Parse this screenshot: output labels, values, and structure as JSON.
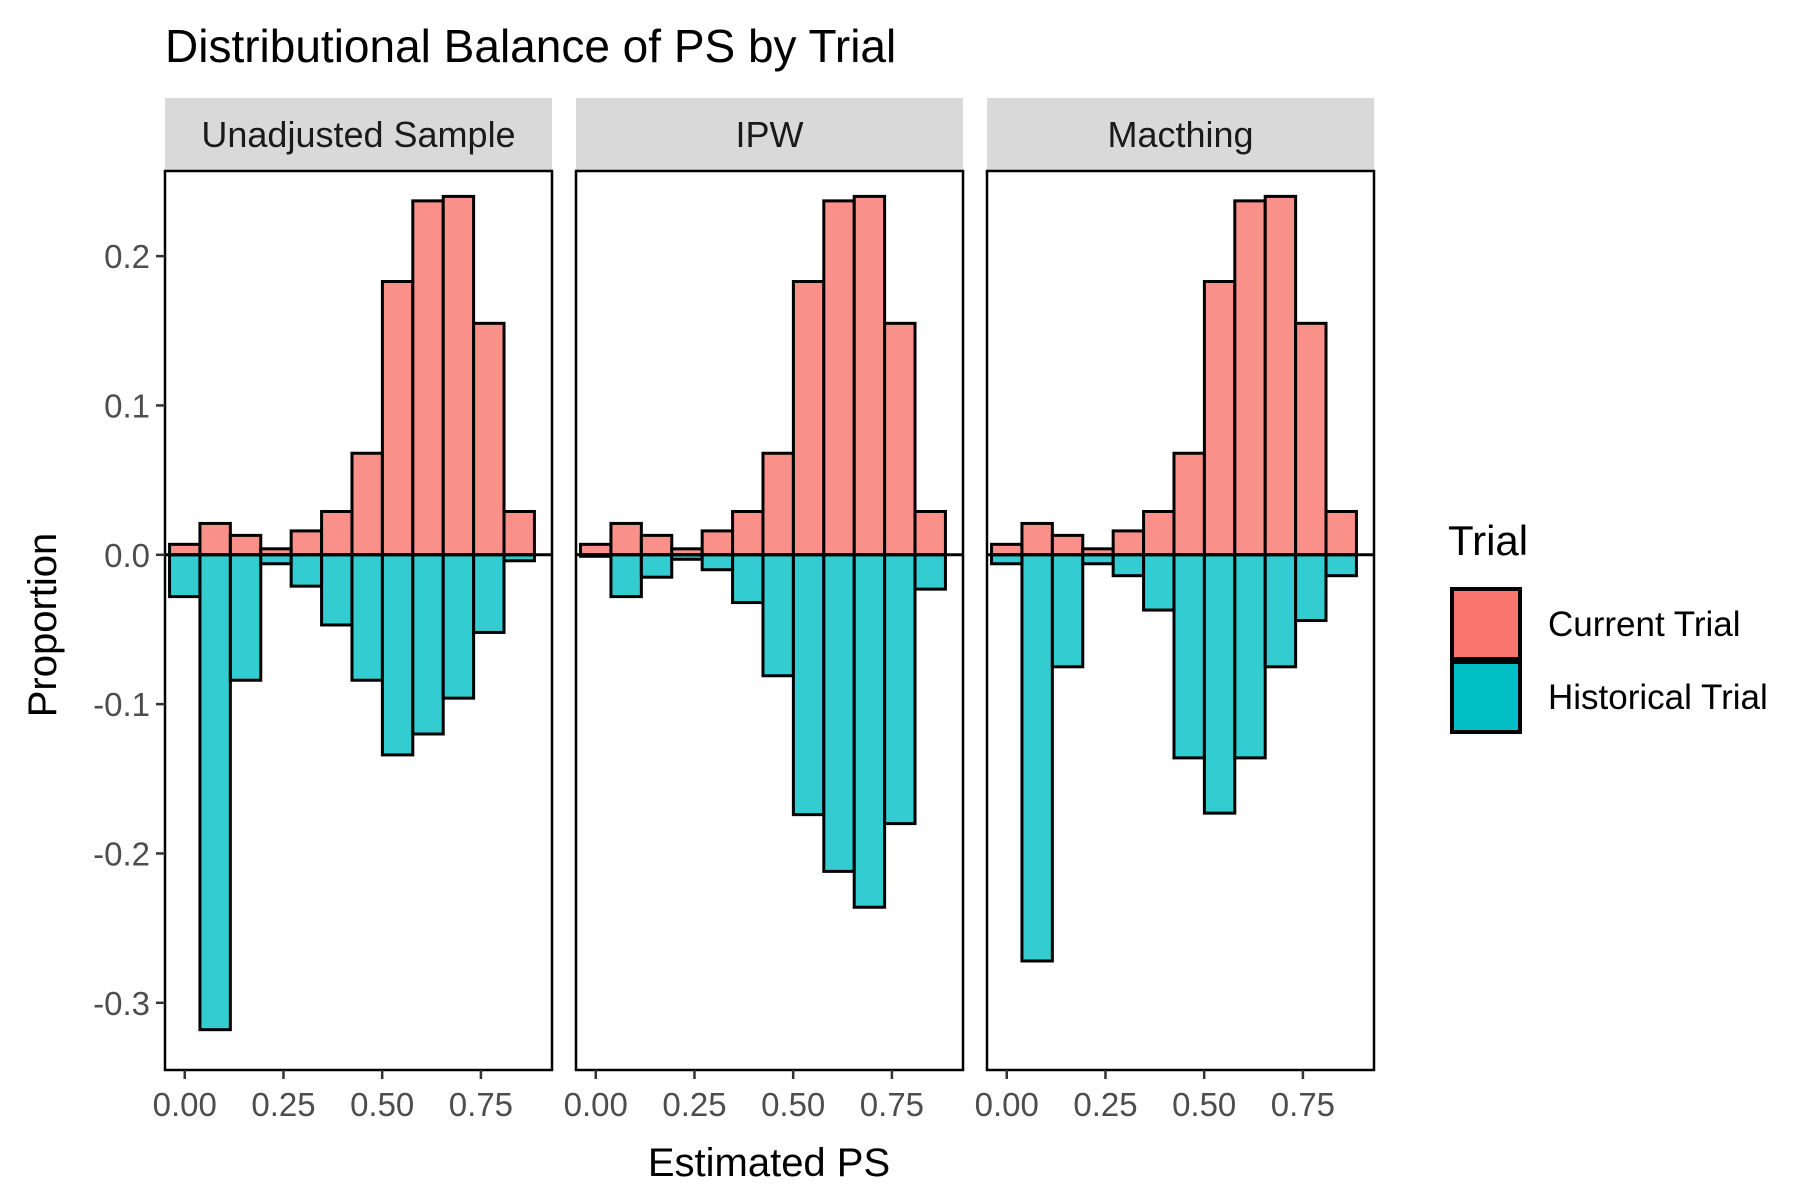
{
  "chart_data": {
    "type": "bar",
    "title": "Distributional Balance of PS by Trial",
    "xlabel": "Estimated PS",
    "ylabel": "Proportion",
    "ylim": [
      -0.345,
      0.257
    ],
    "xlim": [
      -0.05,
      0.93
    ],
    "x_ticks": [
      0.0,
      0.25,
      0.5,
      0.75
    ],
    "x_tick_labels": [
      "0.00",
      "0.25",
      "0.50",
      "0.75"
    ],
    "y_ticks": [
      0.2,
      0.1,
      0.0,
      -0.1,
      -0.2,
      -0.3
    ],
    "y_tick_labels": [
      "0.2",
      "0.1",
      "0.0",
      "-0.1",
      "-0.2",
      "-0.3"
    ],
    "bin_centers": [
      0.0,
      0.077,
      0.154,
      0.231,
      0.308,
      0.385,
      0.462,
      0.539,
      0.616,
      0.693,
      0.77,
      0.847
    ],
    "grid": false,
    "legend": {
      "title": "Trial",
      "position": "right",
      "entries": [
        {
          "label": "Current Trial",
          "color": "#F8766D"
        },
        {
          "label": "Historical Trial",
          "color": "#00BFC4"
        }
      ]
    },
    "panels": [
      {
        "strip": "Unadjusted Sample",
        "series": [
          {
            "name": "Current Trial",
            "values": [
              0.007,
              0.021,
              0.013,
              0.004,
              0.016,
              0.029,
              0.068,
              0.183,
              0.237,
              0.24,
              0.155,
              0.029
            ]
          },
          {
            "name": "Historical Trial",
            "values": [
              -0.028,
              -0.318,
              -0.084,
              -0.006,
              -0.021,
              -0.047,
              -0.084,
              -0.134,
              -0.12,
              -0.096,
              -0.052,
              -0.004
            ]
          }
        ]
      },
      {
        "strip": "IPW",
        "series": [
          {
            "name": "Current Trial",
            "values": [
              0.007,
              0.021,
              0.013,
              0.004,
              0.016,
              0.029,
              0.068,
              0.183,
              0.237,
              0.24,
              0.155,
              0.029
            ]
          },
          {
            "name": "Historical Trial",
            "values": [
              -0.001,
              -0.028,
              -0.015,
              -0.003,
              -0.01,
              -0.032,
              -0.081,
              -0.174,
              -0.212,
              -0.236,
              -0.18,
              -0.023
            ]
          }
        ]
      },
      {
        "strip": "Macthing",
        "series": [
          {
            "name": "Current Trial",
            "values": [
              0.007,
              0.021,
              0.013,
              0.004,
              0.016,
              0.029,
              0.068,
              0.183,
              0.237,
              0.24,
              0.155,
              0.029
            ]
          },
          {
            "name": "Historical Trial",
            "values": [
              -0.006,
              -0.272,
              -0.075,
              -0.006,
              -0.014,
              -0.037,
              -0.136,
              -0.173,
              -0.136,
              -0.075,
              -0.044,
              -0.014
            ]
          }
        ]
      }
    ]
  }
}
